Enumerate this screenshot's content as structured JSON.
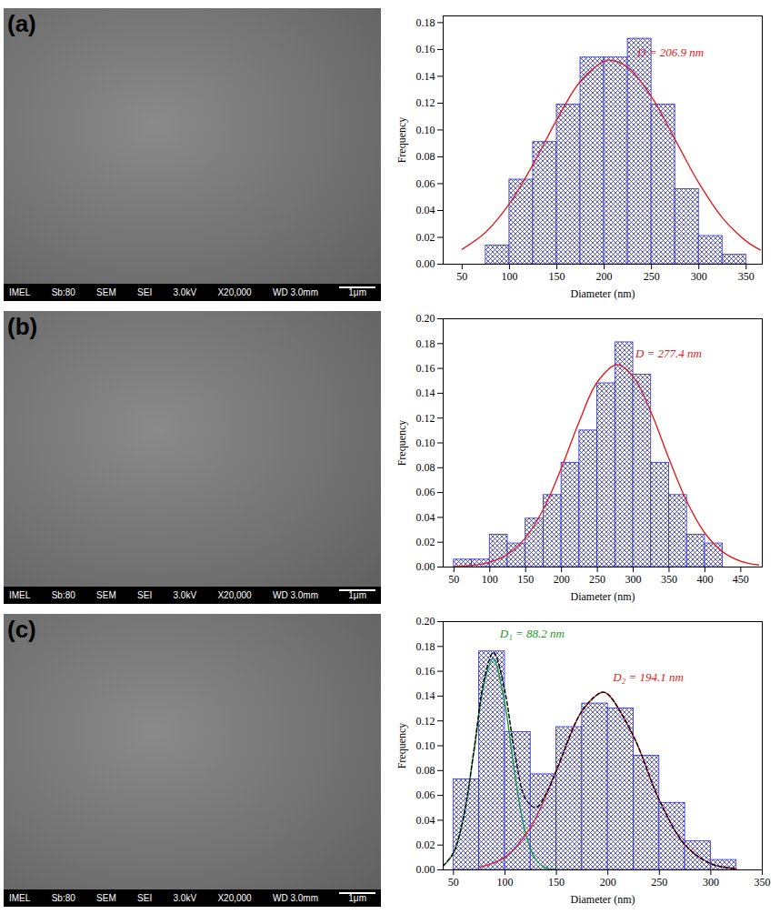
{
  "chart_data": [
    {
      "type": "histogram",
      "xlabel": "Diameter (nm)",
      "ylabel": "Frequency",
      "color": "#2b2bd0",
      "bins": [
        75,
        100,
        125,
        150,
        175,
        200,
        225,
        250,
        275,
        300,
        325,
        350
      ],
      "values": [
        0.014,
        0.063,
        0.091,
        0.119,
        0.154,
        0.154,
        0.168,
        0.119,
        0.056,
        0.021,
        0.007
      ],
      "xlim": [
        30,
        367
      ],
      "xticks": [
        50,
        100,
        150,
        200,
        250,
        300,
        350
      ],
      "ylim": [
        0,
        0.185
      ],
      "yticks": [
        {
          "value": 0,
          "label": "0.00"
        },
        {
          "value": 0.02,
          "label": "0.02"
        },
        {
          "value": 0.04,
          "label": "0.04"
        },
        {
          "value": 0.06,
          "label": "0.06"
        },
        {
          "value": 0.08,
          "label": "0.08"
        },
        {
          "value": 0.1,
          "label": "0.10"
        },
        {
          "value": 0.12,
          "label": "0.12"
        },
        {
          "value": 0.14,
          "label": "0.14"
        },
        {
          "value": 0.16,
          "label": "0.16"
        },
        {
          "value": 0.18,
          "label": "0.18"
        }
      ],
      "series": [
        {
          "type": "line",
          "color": "#e02020",
          "line_style": "solid",
          "x": [
            50,
            75,
            100,
            125,
            150,
            175,
            200,
            206.9,
            225,
            250,
            275,
            300,
            325,
            350,
            365
          ],
          "values": [
            0.0111,
            0.0239,
            0.0451,
            0.0745,
            0.1077,
            0.1364,
            0.1512,
            0.152,
            0.1468,
            0.1247,
            0.0928,
            0.0605,
            0.0345,
            0.0172,
            0.0106
          ]
        }
      ],
      "annotations": [
        {
          "text": "D = 206.9 nm",
          "x": 235,
          "y": 0.158,
          "color": "#e02020"
        }
      ]
    },
    {
      "type": "histogram",
      "xlabel": "Diameter (nm)",
      "ylabel": "Frequency",
      "color": "#2b2bd0",
      "bins": [
        50,
        75,
        100,
        125,
        150,
        175,
        200,
        225,
        250,
        275,
        300,
        325,
        350,
        375,
        400,
        425
      ],
      "values": [
        0.006,
        0.006,
        0.026,
        0.019,
        0.039,
        0.058,
        0.084,
        0.11,
        0.148,
        0.181,
        0.155,
        0.084,
        0.058,
        0.026,
        0.019
      ],
      "xlim": [
        35,
        480
      ],
      "xticks": [
        50,
        100,
        150,
        200,
        250,
        300,
        350,
        400,
        450
      ],
      "ylim": [
        0,
        0.2
      ],
      "yticks": [
        {
          "value": 0,
          "label": "0.00"
        },
        {
          "value": 0.02,
          "label": "0.02"
        },
        {
          "value": 0.04,
          "label": "0.04"
        },
        {
          "value": 0.06,
          "label": "0.06"
        },
        {
          "value": 0.08,
          "label": "0.08"
        },
        {
          "value": 0.1,
          "label": "0.10"
        },
        {
          "value": 0.12,
          "label": "0.12"
        },
        {
          "value": 0.14,
          "label": "0.14"
        },
        {
          "value": 0.16,
          "label": "0.16"
        },
        {
          "value": 0.18,
          "label": "0.18"
        },
        {
          "value": 0.2,
          "label": "0.20"
        }
      ],
      "series": [
        {
          "type": "line",
          "color": "#e02020",
          "line_style": "solid",
          "x": [
            50,
            75,
            100,
            125,
            150,
            175,
            200,
            225,
            250,
            277.4,
            300,
            325,
            350,
            375,
            400,
            425,
            450,
            475
          ],
          "values": [
            0.0004,
            0.0013,
            0.0039,
            0.0103,
            0.0237,
            0.0469,
            0.08,
            0.1176,
            0.1491,
            0.163,
            0.1534,
            0.1245,
            0.0871,
            0.0526,
            0.0273,
            0.0122,
            0.0047,
            0.0016
          ]
        }
      ],
      "annotations": [
        {
          "text": "D = 277.4 nm",
          "x": 303,
          "y": 0.172,
          "color": "#e02020"
        }
      ]
    },
    {
      "type": "histogram",
      "xlabel": "Diameter (nm)",
      "ylabel": "Frequency",
      "color": "#2b2bd0",
      "bins": [
        50,
        75,
        100,
        125,
        150,
        175,
        200,
        225,
        250,
        275,
        300,
        325
      ],
      "values": [
        0.073,
        0.176,
        0.111,
        0.077,
        0.115,
        0.134,
        0.13,
        0.092,
        0.054,
        0.023,
        0.008
      ],
      "xlim": [
        40,
        350
      ],
      "xticks": [
        50,
        100,
        150,
        200,
        250,
        300,
        350
      ],
      "ylim": [
        0,
        0.2
      ],
      "yticks": [
        {
          "value": 0,
          "label": "0.00"
        },
        {
          "value": 0.02,
          "label": "0.02"
        },
        {
          "value": 0.04,
          "label": "0.04"
        },
        {
          "value": 0.06,
          "label": "0.06"
        },
        {
          "value": 0.08,
          "label": "0.08"
        },
        {
          "value": 0.1,
          "label": "0.10"
        },
        {
          "value": 0.12,
          "label": "0.12"
        },
        {
          "value": 0.14,
          "label": "0.14"
        },
        {
          "value": 0.16,
          "label": "0.16"
        },
        {
          "value": 0.18,
          "label": "0.18"
        },
        {
          "value": 0.2,
          "label": "0.20"
        }
      ],
      "series": [
        {
          "type": "line",
          "color": "#1a9a2a",
          "line_style": "solid",
          "x": [
            40,
            50,
            60,
            70,
            80,
            88.2,
            90,
            100,
            110,
            120,
            130,
            140,
            150
          ],
          "values": [
            0.0031,
            0.0136,
            0.0429,
            0.0958,
            0.1513,
            0.17,
            0.169,
            0.1336,
            0.0747,
            0.0296,
            0.0083,
            0.0016,
            0.0002
          ]
        },
        {
          "type": "line",
          "color": "#e02020",
          "line_style": "solid",
          "x": [
            75,
            100,
            125,
            150,
            175,
            194.1,
            200,
            225,
            250,
            275,
            300,
            325
          ],
          "values": [
            0.0021,
            0.0102,
            0.0343,
            0.08,
            0.1282,
            0.143,
            0.1415,
            0.1075,
            0.0562,
            0.0202,
            0.005,
            0.0009
          ]
        },
        {
          "type": "line",
          "color": "#000000",
          "line_style": "dashed",
          "x": [
            40,
            50,
            60,
            70,
            80,
            88.2,
            90,
            100,
            110,
            120,
            130,
            140,
            150,
            175,
            194.1,
            200,
            225,
            250,
            275,
            300,
            325
          ],
          "values": [
            0.0032,
            0.0139,
            0.0436,
            0.0972,
            0.1542,
            0.175,
            0.1746,
            0.1438,
            0.092,
            0.0573,
            0.0502,
            0.0613,
            0.0802,
            0.1282,
            0.143,
            0.1415,
            0.1075,
            0.0562,
            0.0202,
            0.005,
            0.0009
          ]
        }
      ],
      "annotations": [
        {
          "text": "D₁ = 88.2 nm",
          "x": 95,
          "y": 0.19,
          "color": "#1a9a2a"
        },
        {
          "text": "D₂ = 194.1 nm",
          "x": 205,
          "y": 0.155,
          "color": "#e02020"
        }
      ]
    }
  ],
  "images": [
    {
      "panel": "(a)",
      "info_bar": [
        "IMEL",
        "Sb:80",
        "SEM",
        "SEI",
        "3.0kV",
        "X20,000",
        "WD 3.0mm",
        "1μm"
      ]
    },
    {
      "panel": "(b)",
      "info_bar": [
        "IMEL",
        "Sb:80",
        "SEM",
        "SEI",
        "3.0kV",
        "X20,000",
        "WD 3.0mm",
        "1μm"
      ]
    },
    {
      "panel": "(c)",
      "info_bar": [
        "IMEL",
        "Sb:80",
        "SEM",
        "SEI",
        "3.0kV",
        "X20,000",
        "WD 3.0mm",
        "1μm"
      ]
    }
  ]
}
